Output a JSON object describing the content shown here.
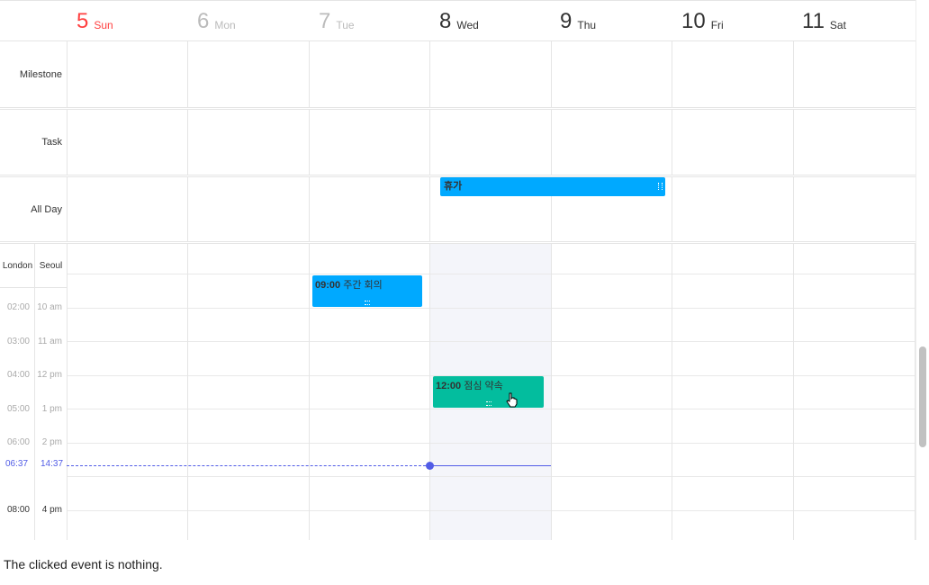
{
  "days": [
    {
      "num": "5",
      "name": "Sun",
      "kind": "sun"
    },
    {
      "num": "6",
      "name": "Mon",
      "kind": "past"
    },
    {
      "num": "7",
      "name": "Tue",
      "kind": "past"
    },
    {
      "num": "8",
      "name": "Wed",
      "kind": "today"
    },
    {
      "num": "9",
      "name": "Thu",
      "kind": "normal"
    },
    {
      "num": "10",
      "name": "Fri",
      "kind": "normal"
    },
    {
      "num": "11",
      "name": "Sat",
      "kind": "normal"
    }
  ],
  "panels": {
    "milestone": "Milestone",
    "task": "Task",
    "allday": "All Day"
  },
  "allday_event": {
    "title": "휴가",
    "color": "#00a9ff"
  },
  "timezones": {
    "left": "London",
    "right": "Seoul"
  },
  "ticks_london": [
    "02:00",
    "03:00",
    "04:00",
    "05:00",
    "06:00",
    "08:00"
  ],
  "ticks_seoul": [
    "10 am",
    "11 am",
    "12 pm",
    "1 pm",
    "2 pm",
    "4 pm"
  ],
  "now": {
    "london": "06:37",
    "seoul": "14:37",
    "color": "#515ce6"
  },
  "events": [
    {
      "time": "09:00",
      "title": "주간 회의",
      "color": "#00a9ff"
    },
    {
      "time": "12:00",
      "title": "점심 약속",
      "color": "#03bd9e"
    }
  ],
  "status": "The clicked event is nothing."
}
